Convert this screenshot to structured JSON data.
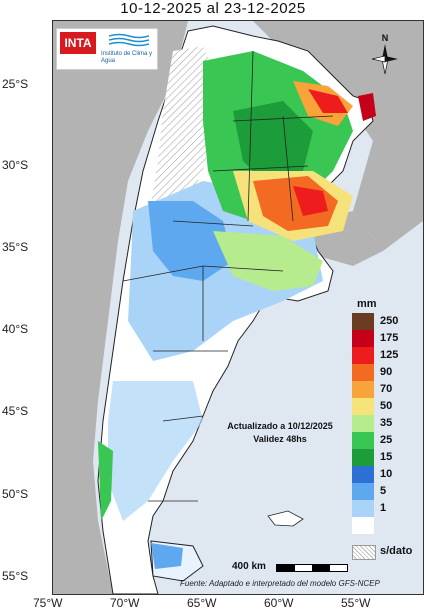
{
  "title": "10-12-2025 al 23-12-2025",
  "logo": {
    "brand": "INTA",
    "institute": "Instituto de Clima y Agua"
  },
  "compass": {
    "label": "N"
  },
  "latitudes": [
    "25°S",
    "30°S",
    "35°S",
    "40°S",
    "45°S",
    "50°S",
    "55°S"
  ],
  "longitudes": [
    "75°W",
    "70°W",
    "65°W",
    "60°W",
    "55°W"
  ],
  "legend": {
    "unit": "mm",
    "items": [
      {
        "label": "250",
        "color": "#6b3b22"
      },
      {
        "label": "175",
        "color": "#c4001a"
      },
      {
        "label": "125",
        "color": "#ee1c1c"
      },
      {
        "label": "90",
        "color": "#f36b22"
      },
      {
        "label": "70",
        "color": "#f9a33b"
      },
      {
        "label": "50",
        "color": "#f6e27a"
      },
      {
        "label": "35",
        "color": "#b6ec8e"
      },
      {
        "label": "25",
        "color": "#39c653"
      },
      {
        "label": "15",
        "color": "#1d9c3a"
      },
      {
        "label": "10",
        "color": "#2e6fd6"
      },
      {
        "label": "5",
        "color": "#5ea8f0"
      },
      {
        "label": "1",
        "color": "#a9d4f7"
      },
      {
        "label": "",
        "color": "#ffffff"
      }
    ],
    "nodata": "s/dato"
  },
  "annotation": {
    "line1": "Actualizado a 10/12/2025",
    "line2": "Validez 48hs"
  },
  "scale": {
    "label": "400 km"
  },
  "source": "Fuente: Adaptado e interpretado del modelo GFS-NCEP"
}
